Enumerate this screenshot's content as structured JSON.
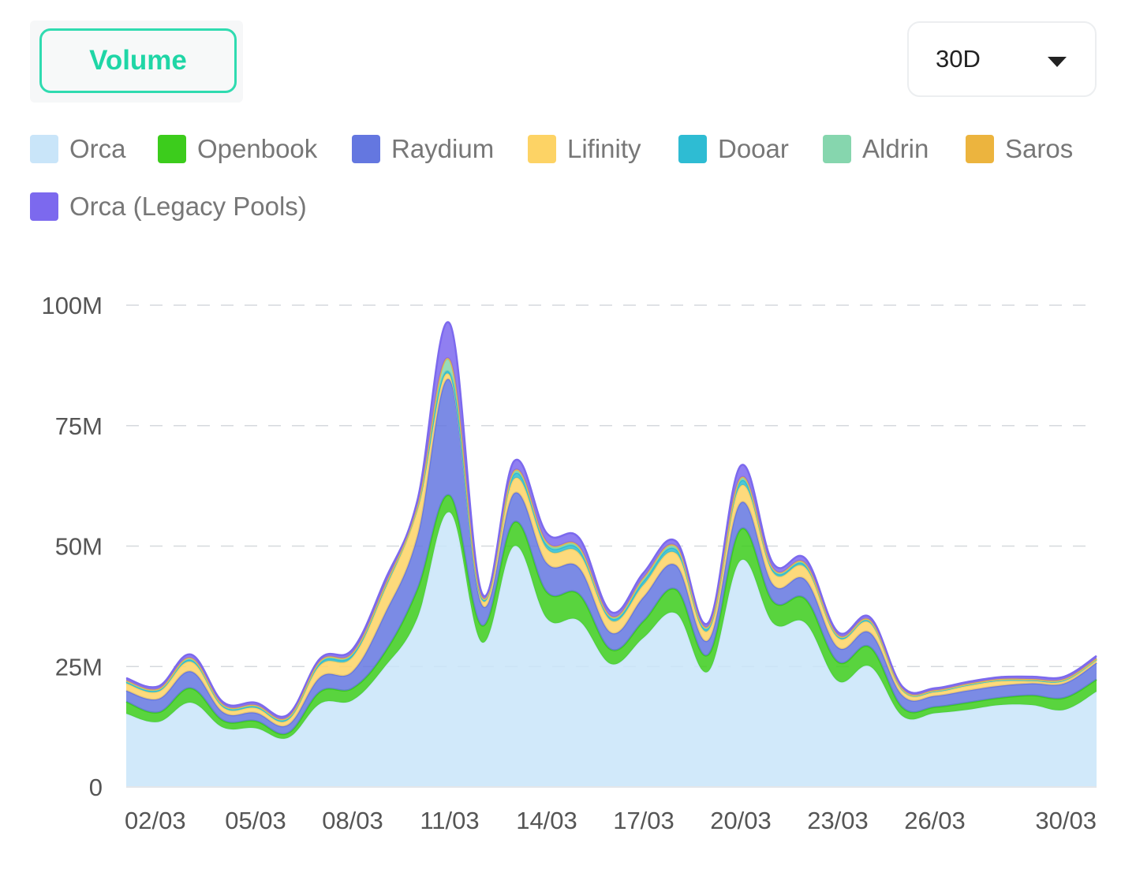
{
  "toolbar": {
    "metric_tab_label": "Volume",
    "range_value": "30D"
  },
  "chart_data": {
    "type": "area",
    "stacked": true,
    "grid": "dashed-horizontal",
    "legend_position": "top",
    "ylim": [
      0,
      100000000
    ],
    "y_ticks": [
      "0",
      "25M",
      "50M",
      "75M",
      "100M"
    ],
    "x_tick_labels": [
      "02/03",
      "05/03",
      "08/03",
      "11/03",
      "14/03",
      "17/03",
      "20/03",
      "23/03",
      "26/03",
      "30/03"
    ],
    "x": [
      "01/03",
      "02/03",
      "03/03",
      "04/03",
      "05/03",
      "06/03",
      "07/03",
      "08/03",
      "09/03",
      "10/03",
      "11/03",
      "12/03",
      "13/03",
      "14/03",
      "15/03",
      "16/03",
      "17/03",
      "18/03",
      "19/03",
      "20/03",
      "21/03",
      "22/03",
      "23/03",
      "24/03",
      "25/03",
      "26/03",
      "27/03",
      "28/03",
      "29/03",
      "30/03",
      "31/03"
    ],
    "series": [
      {
        "name": "Orca",
        "color": "#c9e5f9",
        "values": [
          15.2,
          13.5,
          17.5,
          12.3,
          12.2,
          10.2,
          17.3,
          18.0,
          25.0,
          35.0,
          57.0,
          30.0,
          50.0,
          35.0,
          34.5,
          25.5,
          31.0,
          36.0,
          24.0,
          47.0,
          34.0,
          34.0,
          22.0,
          25.0,
          14.7,
          15.3,
          16.0,
          17.0,
          17.0,
          16.0,
          19.8
        ]
      },
      {
        "name": "Openbook",
        "color": "#3ccc1c",
        "values": [
          2.5,
          2.0,
          3.0,
          1.5,
          1.5,
          1.0,
          2.5,
          2.5,
          3.0,
          6.0,
          3.5,
          3.5,
          5.0,
          5.5,
          5.5,
          3.0,
          3.5,
          5.0,
          3.5,
          6.5,
          4.5,
          5.0,
          4.0,
          4.0,
          1.8,
          1.3,
          1.5,
          1.5,
          2.0,
          2.5,
          2.5
        ]
      },
      {
        "name": "Raydium",
        "color": "#6477e0",
        "values": [
          2.3,
          2.8,
          3.5,
          1.7,
          1.7,
          1.7,
          3.0,
          3.5,
          8.0,
          11.0,
          24.0,
          4.3,
          6.0,
          6.0,
          5.5,
          3.5,
          5.0,
          5.0,
          3.0,
          5.5,
          3.5,
          4.0,
          3.0,
          3.0,
          2.5,
          2.3,
          2.5,
          2.5,
          2.5,
          3.0,
          3.5
        ]
      },
      {
        "name": "Lifinity",
        "color": "#fdd365",
        "values": [
          1.5,
          1.5,
          2.0,
          1.0,
          1.0,
          1.0,
          2.5,
          3.0,
          5.0,
          5.5,
          1.0,
          1.0,
          3.0,
          3.0,
          3.0,
          2.5,
          2.5,
          2.5,
          2.0,
          3.5,
          2.5,
          2.5,
          2.0,
          2.0,
          1.0,
          0.8,
          1.0,
          1.0,
          0.5,
          0.5,
          0.5
        ]
      },
      {
        "name": "Dooar",
        "color": "#2ebcd3",
        "values": [
          0.3,
          0.3,
          0.4,
          0.3,
          0.3,
          0.3,
          0.5,
          0.5,
          0.5,
          0.5,
          0.5,
          0.3,
          1.0,
          0.8,
          0.8,
          0.5,
          0.8,
          0.8,
          0.5,
          1.0,
          0.5,
          0.5,
          0.3,
          0.3,
          0.2,
          0.2,
          0.2,
          0.2,
          0.2,
          0.2,
          0.2
        ]
      },
      {
        "name": "Aldrin",
        "color": "#86d6ae",
        "values": [
          0.2,
          0.2,
          0.3,
          0.2,
          0.2,
          0.2,
          0.3,
          0.3,
          0.3,
          0.3,
          2.5,
          0.3,
          0.5,
          0.4,
          0.4,
          0.3,
          0.5,
          0.5,
          0.3,
          0.5,
          0.3,
          0.3,
          0.2,
          0.2,
          0.1,
          0.1,
          0.1,
          0.1,
          0.1,
          0.1,
          0.1
        ]
      },
      {
        "name": "Saros",
        "color": "#ecb43e",
        "values": [
          0.1,
          0.1,
          0.1,
          0.1,
          0.1,
          0.1,
          0.1,
          0.1,
          0.1,
          0.1,
          0.2,
          0.1,
          0.2,
          0.2,
          0.2,
          0.1,
          0.2,
          0.2,
          0.1,
          0.2,
          0.1,
          0.1,
          0.1,
          0.1,
          0.1,
          0.1,
          0.1,
          0.1,
          0.1,
          0.1,
          0.1
        ]
      },
      {
        "name": "Orca (Legacy Pools)",
        "color": "#7c69ee",
        "values": [
          0.5,
          0.5,
          0.7,
          0.5,
          0.5,
          0.5,
          0.5,
          0.7,
          1.0,
          1.0,
          7.5,
          0.7,
          2.0,
          1.8,
          1.8,
          0.9,
          1.0,
          1.0,
          0.7,
          2.5,
          1.0,
          1.0,
          0.6,
          0.6,
          0.4,
          0.4,
          0.4,
          0.4,
          0.5,
          0.5,
          0.5
        ]
      }
    ]
  }
}
